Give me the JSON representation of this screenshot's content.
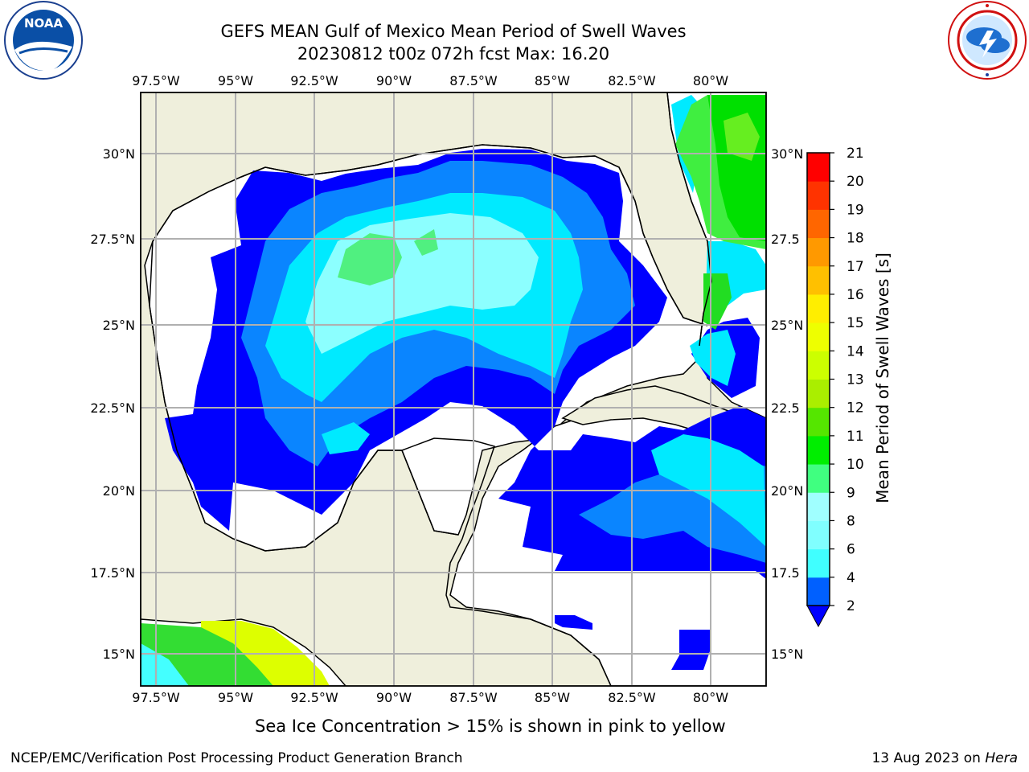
{
  "title_line1": "GEFS MEAN Gulf of Mexico Mean Period of Swell Waves",
  "title_line2": "20230812 t00z 072h fcst   Max: 16.20",
  "logos": {
    "left": "noaa-logo",
    "right": "nws-logo"
  },
  "map": {
    "lon_ticks": [
      "97.5°W",
      "95°W",
      "92.5°W",
      "90°W",
      "87.5°W",
      "85°W",
      "82.5°W",
      "80°W"
    ],
    "lat_ticks_left": [
      "30°N",
      "27.5°N",
      "25°N",
      "22.5°N",
      "20°N",
      "17.5°N",
      "15°N"
    ],
    "lat_ticks_right": [
      "30°N",
      "27.5",
      "25°N",
      "22.5",
      "20°N",
      "17.5",
      "15°N"
    ],
    "land_color": "#efefdc",
    "grid_color": "#b0b0b0"
  },
  "colorbar": {
    "label": "Mean Period of Swell Waves [s]",
    "tick_labels": [
      "2",
      "4",
      "6",
      "8",
      "9",
      "10",
      "11",
      "12",
      "13",
      "14",
      "15",
      "16",
      "17",
      "18",
      "19",
      "20",
      "21"
    ],
    "colors": [
      "#0060ff",
      "#00ccff",
      "#40ffff",
      "#80ffff",
      "#a0ffff",
      "#40ff80",
      "#00ee00",
      "#55e600",
      "#aaee00",
      "#ccff00",
      "#eeff00",
      "#ffee00",
      "#ffc000",
      "#ff9900",
      "#ff6600",
      "#ff3300",
      "#ff0000"
    ],
    "extend_color": "#0000ff"
  },
  "sea_ice_note": "Sea Ice Concentration > 15% is shown in pink to yellow",
  "footer_left": "NCEP/EMC/Verification Post Processing Product Generation Branch",
  "footer_right_date": "13 Aug 2023 on ",
  "footer_right_host": "Hera"
}
